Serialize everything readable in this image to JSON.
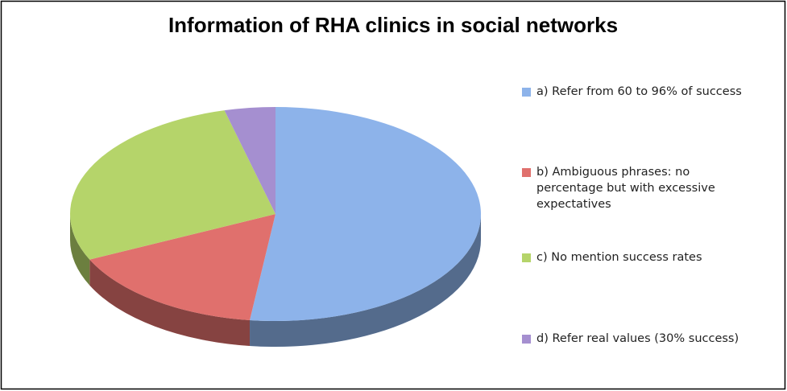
{
  "chart_data": {
    "type": "pie3d",
    "title": "Information of RHA clinics in social networks",
    "categories": [
      "a) Refer from 60 to 96% of success",
      "b) Ambiguous phrases: no percentage but with excessive expectatives",
      "c) No mention success rates",
      "d) Refer real values (30% success)"
    ],
    "values": [
      52,
      16,
      28,
      4
    ],
    "colors": [
      "#8db3ea",
      "#e0706d",
      "#b5d46a",
      "#a58fd0"
    ],
    "legend": "right"
  }
}
